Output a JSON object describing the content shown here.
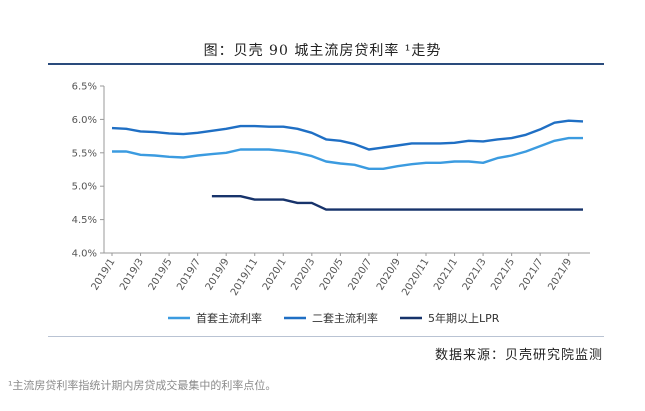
{
  "figure_title": "图：贝壳 90 城主流房贷利率 ¹走势",
  "source": "数据来源：贝壳研究院监测",
  "footnote": "¹主流房贷利率指统计期内房贷成交最集中的利率点位。",
  "chart_data": {
    "type": "line",
    "yticks": [
      "6.5%",
      "6.0%",
      "5.5%",
      "5.0%",
      "4.5%",
      "4.0%"
    ],
    "ylim": [
      4.0,
      6.5
    ],
    "xlabels": [
      "2019/1",
      "2019/3",
      "2019/5",
      "2019/7",
      "2019/9",
      "2019/11",
      "2020/1",
      "2020/3",
      "2020/5",
      "2020/7",
      "2020/9",
      "2020/11",
      "2021/1",
      "2021/3",
      "2021/5",
      "2021/7",
      "2021/9"
    ],
    "x": [
      "2019/1",
      "2019/2",
      "2019/3",
      "2019/4",
      "2019/5",
      "2019/6",
      "2019/7",
      "2019/8",
      "2019/9",
      "2019/10",
      "2019/11",
      "2019/12",
      "2020/1",
      "2020/2",
      "2020/3",
      "2020/4",
      "2020/5",
      "2020/6",
      "2020/7",
      "2020/8",
      "2020/9",
      "2020/10",
      "2020/11",
      "2020/12",
      "2021/1",
      "2021/2",
      "2021/3",
      "2021/4",
      "2021/5",
      "2021/6",
      "2021/7",
      "2021/8",
      "2021/9",
      "2021/10"
    ],
    "grid": false,
    "legend_position": "bottom",
    "series": [
      {
        "name": "首套主流利率",
        "color": "#3b9be0",
        "values": [
          5.52,
          5.52,
          5.47,
          5.46,
          5.44,
          5.43,
          5.46,
          5.48,
          5.5,
          5.55,
          5.55,
          5.55,
          5.53,
          5.5,
          5.45,
          5.37,
          5.34,
          5.32,
          5.26,
          5.26,
          5.3,
          5.33,
          5.35,
          5.35,
          5.37,
          5.37,
          5.35,
          5.42,
          5.46,
          5.52,
          5.6,
          5.68,
          5.72,
          5.72
        ]
      },
      {
        "name": "二套主流利率",
        "color": "#1f6fc4",
        "values": [
          5.87,
          5.86,
          5.82,
          5.81,
          5.79,
          5.78,
          5.8,
          5.83,
          5.86,
          5.9,
          5.9,
          5.89,
          5.89,
          5.86,
          5.8,
          5.7,
          5.68,
          5.63,
          5.55,
          5.58,
          5.61,
          5.64,
          5.64,
          5.64,
          5.65,
          5.68,
          5.67,
          5.7,
          5.72,
          5.77,
          5.85,
          5.95,
          5.98,
          5.97
        ]
      },
      {
        "name": "5年期以上LPR",
        "color": "#17336b",
        "start_index": 7,
        "values": [
          null,
          null,
          null,
          null,
          null,
          null,
          null,
          4.85,
          4.85,
          4.85,
          4.8,
          4.8,
          4.8,
          4.75,
          4.75,
          4.65,
          4.65,
          4.65,
          4.65,
          4.65,
          4.65,
          4.65,
          4.65,
          4.65,
          4.65,
          4.65,
          4.65,
          4.65,
          4.65,
          4.65,
          4.65,
          4.65,
          4.65,
          4.65
        ]
      }
    ]
  }
}
